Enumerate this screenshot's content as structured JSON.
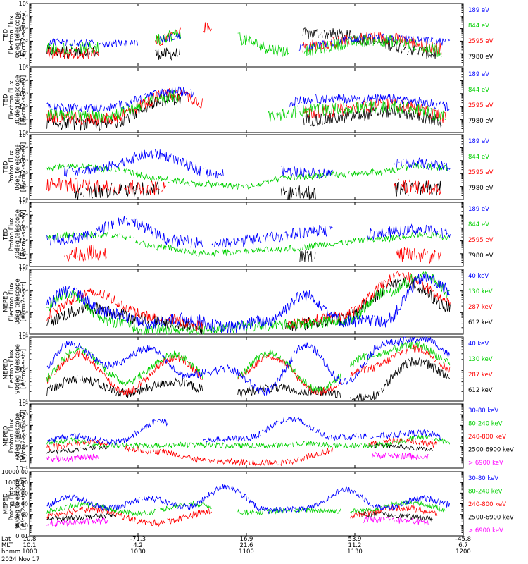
{
  "chart_data": [
    {
      "type": "line",
      "ylabel": [
        "TED",
        "Electron Flux",
        "0deg telescope",
        "[#/cm2-s-str-eV]"
      ],
      "yscale": "log",
      "ylim": [
        1,
        100000
      ],
      "ytick_labels": [
        "10⁰",
        "10¹",
        "10²",
        "10³",
        "10⁴",
        "10⁵"
      ],
      "series": [
        {
          "name": "7980 eV",
          "color": "#000000",
          "segments": [
            [
              0.04,
              0.16
            ],
            [
              0.29,
              0.35
            ],
            [
              0.63,
              0.94
            ]
          ],
          "values": [
            1.2,
            1.0,
            2.6,
            0.8
          ],
          "noise": 0.5,
          "gaps": 0.35
        },
        {
          "name": "2595 eV",
          "color": "#ff0000",
          "segments": [
            [
              0.04,
              0.16
            ],
            [
              0.29,
              0.35
            ],
            [
              0.4,
              0.42
            ],
            [
              0.63,
              0.95
            ]
          ],
          "values": [
            1.0,
            1.1,
            3.1,
            1.5,
            2.3,
            1.2
          ],
          "noise": 0.5,
          "gaps": 0.25
        },
        {
          "name": "844 eV",
          "color": "#00d000",
          "segments": [
            [
              0.04,
              0.16
            ],
            [
              0.29,
              0.35
            ],
            [
              0.48,
              0.6
            ],
            [
              0.63,
              0.95
            ]
          ],
          "values": [
            1.4,
            1.5,
            2.9,
            1.2,
            2.1,
            1.0
          ],
          "noise": 0.5,
          "gaps": 0.3
        },
        {
          "name": "189 eV",
          "color": "#0000ff",
          "segments": [
            [
              0.04,
              0.25
            ],
            [
              0.3,
              0.35
            ],
            [
              0.62,
              0.97
            ]
          ],
          "values": [
            2.0,
            1.8,
            2.5,
            1.5,
            2.3,
            1.9
          ],
          "noise": 0.3,
          "gaps": 0.55
        }
      ]
    },
    {
      "type": "line",
      "ylabel": [
        "TED",
        "Electron Flux",
        "30deg telescope",
        "[#/cm2-s-str-eV]"
      ],
      "yscale": "log",
      "ylim": [
        1,
        100000
      ],
      "ytick_labels": [
        "10⁰",
        "10¹",
        "10²",
        "10³",
        "10⁴",
        "10⁵"
      ],
      "series": [
        {
          "name": "7980 eV",
          "color": "#000000",
          "segments": [
            [
              0.04,
              0.35
            ],
            [
              0.63,
              0.95
            ]
          ],
          "values": [
            0.8,
            0.6,
            2.6,
            0.6,
            1.0,
            1.6,
            0.6
          ],
          "noise": 0.5,
          "gaps": 0.2
        },
        {
          "name": "2595 eV",
          "color": "#ff0000",
          "segments": [
            [
              0.04,
              0.4
            ],
            [
              0.63,
              0.96
            ]
          ],
          "values": [
            1.3,
            1.0,
            3.0,
            0.8,
            1.6,
            2.2,
            1.0
          ],
          "noise": 0.5,
          "gaps": 0.25
        },
        {
          "name": "844 eV",
          "color": "#00d000",
          "segments": [
            [
              0.04,
              0.35
            ],
            [
              0.55,
              0.96
            ]
          ],
          "values": [
            1.5,
            1.3,
            2.8,
            1.0,
            1.8,
            2.0,
            1.1
          ],
          "noise": 0.5,
          "gaps": 0.3
        },
        {
          "name": "189 eV",
          "color": "#0000ff",
          "segments": [
            [
              0.04,
              0.38
            ],
            [
              0.6,
              0.97
            ]
          ],
          "values": [
            2.0,
            1.9,
            3.2,
            1.8,
            2.6,
            2.6,
            1.9
          ],
          "noise": 0.35,
          "gaps": 0.3
        }
      ]
    },
    {
      "type": "line",
      "ylabel": [
        "TED",
        "Proton Flux",
        "0deg telescope",
        "[#/cm2-s-str-eV]"
      ],
      "yscale": "log",
      "ylim": [
        1,
        100000
      ],
      "ytick_labels": [
        "10⁰",
        "10¹",
        "10²",
        "10³",
        "10⁴",
        "10⁵"
      ],
      "series": [
        {
          "name": "7980 eV",
          "color": "#000000",
          "segments": [
            [
              0.1,
              0.3
            ],
            [
              0.58,
              0.66
            ],
            [
              0.84,
              0.95
            ]
          ],
          "values": [
            0.4,
            0.8,
            0.3,
            0.7,
            0.9
          ],
          "noise": 0.6,
          "gaps": 0.5
        },
        {
          "name": "2595 eV",
          "color": "#ff0000",
          "segments": [
            [
              0.04,
              0.32
            ],
            [
              0.84,
              0.95
            ]
          ],
          "values": [
            1.2,
            0.9,
            0.8,
            1.2,
            0.9
          ],
          "noise": 0.6,
          "gaps": 0.55
        },
        {
          "name": "844 eV",
          "color": "#00d000",
          "segments": [
            [
              0.04,
              0.97
            ]
          ],
          "values": [
            2.3,
            2.6,
            2.3,
            1.6,
            1.2,
            1.0,
            1.7,
            1.9,
            2.1,
            2.6,
            2.3
          ],
          "noise": 0.25,
          "gaps": 0.3
        },
        {
          "name": "189 eV",
          "color": "#0000ff",
          "segments": [
            [
              0.08,
              0.45
            ],
            [
              0.58,
              0.7
            ],
            [
              0.84,
              0.97
            ]
          ],
          "values": [
            2.0,
            2.3,
            3.5,
            2.0,
            2.2,
            2.0,
            2.9,
            2.4
          ],
          "noise": 0.4,
          "gaps": 0.45
        }
      ]
    },
    {
      "type": "line",
      "ylabel": [
        "TED",
        "Proton Flux",
        "30deg telescope",
        "[#/cm2-s-str-eV]"
      ],
      "yscale": "log",
      "ylim": [
        1,
        100000
      ],
      "ytick_labels": [
        "10⁰",
        "10¹",
        "10²",
        "10³",
        "10⁴",
        "10⁵"
      ],
      "series": [
        {
          "name": "7980 eV",
          "color": "#000000",
          "segments": [
            [
              0.62,
              0.66
            ]
          ],
          "values": [
            0.6,
            0.8,
            0.5
          ],
          "noise": 0.6,
          "gaps": 0.6
        },
        {
          "name": "2595 eV",
          "color": "#ff0000",
          "segments": [
            [
              0.08,
              0.18
            ],
            [
              0.84,
              0.95
            ]
          ],
          "values": [
            1.0,
            1.3,
            0.8
          ],
          "noise": 0.6,
          "gaps": 0.6
        },
        {
          "name": "844 eV",
          "color": "#00d000",
          "segments": [
            [
              0.04,
              0.97
            ]
          ],
          "values": [
            2.0,
            2.5,
            2.4,
            1.5,
            1.0,
            1.2,
            1.4,
            1.8,
            2.1,
            2.5,
            2.2
          ],
          "noise": 0.25,
          "gaps": 0.4
        },
        {
          "name": "189 eV",
          "color": "#0000ff",
          "segments": [
            [
              0.04,
              0.4
            ],
            [
              0.42,
              0.7
            ],
            [
              0.78,
              0.97
            ]
          ],
          "values": [
            2.0,
            2.2,
            3.6,
            2.0,
            1.8,
            2.3,
            2.8,
            2.5,
            2.9,
            2.6
          ],
          "noise": 0.45,
          "gaps": 0.45
        }
      ]
    },
    {
      "type": "line",
      "ylabel": [
        "MEPED",
        "Electron Flux",
        "0deg telescope",
        "[#/cm2-s-str]"
      ],
      "yscale": "log",
      "ylim": [
        100,
        100000
      ],
      "ytick_labels": [
        "10²",
        "10³",
        "10⁴",
        "10⁵"
      ],
      "series": [
        {
          "name": "612 keV",
          "color": "#000000",
          "segments": [
            [
              0.04,
              0.4
            ],
            [
              0.59,
              0.97
            ]
          ],
          "values": [
            2.4,
            3.2,
            2.6,
            2.2,
            2.3,
            2.7,
            4.4,
            3.0
          ],
          "noise": 0.3,
          "gaps": 0.2
        },
        {
          "name": "287 keV",
          "color": "#ff0000",
          "segments": [
            [
              0.04,
              0.4
            ],
            [
              0.59,
              0.97
            ]
          ],
          "values": [
            2.6,
            3.9,
            2.8,
            2.3,
            2.4,
            2.8,
            4.7,
            3.2
          ],
          "noise": 0.25,
          "gaps": 0.15
        },
        {
          "name": "130 keV",
          "color": "#00d000",
          "segments": [
            [
              0.04,
              0.97
            ]
          ],
          "values": [
            2.7,
            3.9,
            2.6,
            2.2,
            2.2,
            2.3,
            2.4,
            2.5,
            2.6,
            3.9,
            4.7,
            3.5
          ],
          "noise": 0.25,
          "gaps": 0.1
        },
        {
          "name": "40 keV",
          "color": "#0000ff",
          "segments": [
            [
              0.04,
              0.97
            ]
          ],
          "values": [
            2.8,
            4.0,
            3.0,
            2.5,
            2.7,
            2.3,
            2.6,
            3.8,
            2.6,
            2.6,
            4.6,
            3.7
          ],
          "noise": 0.3,
          "gaps": 0.1
        }
      ]
    },
    {
      "type": "line",
      "ylabel": [
        "MEPED",
        "Electron Flux",
        "90deg telescope",
        "[#/cm2-s-str]"
      ],
      "yscale": "log",
      "ylim": [
        100,
        1000000
      ],
      "ytick_labels": [
        "10²",
        "10⁴",
        "10⁶"
      ],
      "series": [
        {
          "name": "612 keV",
          "color": "#000000",
          "segments": [
            [
              0.04,
              0.4
            ],
            [
              0.48,
              0.72
            ],
            [
              0.74,
              0.97
            ]
          ],
          "values": [
            2.3,
            3.4,
            2.5,
            3.2,
            2.4,
            2.8,
            2.6,
            2.2,
            4.5,
            3.2
          ],
          "noise": 0.3,
          "gaps": 0.1
        },
        {
          "name": "287 keV",
          "color": "#ff0000",
          "segments": [
            [
              0.04,
              0.4
            ],
            [
              0.48,
              0.72
            ],
            [
              0.74,
              0.97
            ]
          ],
          "values": [
            2.5,
            4.9,
            2.6,
            4.7,
            2.8,
            4.8,
            2.6,
            4.0,
            5.3,
            3.6
          ],
          "noise": 0.25,
          "gaps": 0.1
        },
        {
          "name": "130 keV",
          "color": "#00d000",
          "segments": [
            [
              0.04,
              0.4
            ],
            [
              0.48,
              0.72
            ],
            [
              0.74,
              0.97
            ]
          ],
          "values": [
            2.6,
            5.2,
            3.2,
            4.9,
            2.9,
            5.0,
            2.7,
            4.8,
            5.5,
            4.0
          ],
          "noise": 0.25,
          "gaps": 0.1
        },
        {
          "name": "40 keV",
          "color": "#0000ff",
          "segments": [
            [
              0.04,
              0.97
            ]
          ],
          "values": [
            2.7,
            5.6,
            4.2,
            5.3,
            3.6,
            4.0,
            2.6,
            5.5,
            3.2,
            5.6,
            5.9,
            4.4
          ],
          "noise": 0.25,
          "gaps": 0.05
        }
      ]
    },
    {
      "type": "line",
      "ylabel": [
        "MEPED",
        "Proton Flux",
        "0deg telescope",
        "[#/cm2-s-str-keV]"
      ],
      "yscale": "log",
      "ylim": [
        0.01,
        10000
      ],
      "ytick_labels": [
        "10⁻²",
        "10⁻¹",
        "10⁰",
        "10¹",
        "10²",
        "10³",
        "10⁴"
      ],
      "series": [
        {
          "name": "> 6900 keV",
          "color": "#ff00ff",
          "segments": [
            [
              0.04,
              0.16
            ],
            [
              0.79,
              0.92
            ]
          ],
          "values": [
            -1.2,
            -0.9,
            -1.3,
            -1.1,
            -0.8,
            -1.1
          ],
          "noise": 0.3,
          "gaps": 0.2
        },
        {
          "name": "2500-6900 keV",
          "color": "#000000",
          "segments": [
            [
              0.04,
              0.18
            ],
            [
              0.78,
              0.93
            ]
          ],
          "values": [
            -0.6,
            0.0,
            -0.7,
            -0.4,
            0.1,
            -0.5
          ],
          "noise": 0.2,
          "gaps": 0.15
        },
        {
          "name": "240-800 keV",
          "color": "#ff0000",
          "segments": [
            [
              0.04,
              0.18
            ],
            [
              0.22,
              0.7
            ],
            [
              0.78,
              0.94
            ]
          ],
          "values": [
            -0.2,
            0.4,
            -0.4,
            -1.4,
            -1.5,
            -0.3,
            0.6,
            -0.1
          ],
          "noise": 0.3,
          "gaps": 0.5
        },
        {
          "name": "80-240 keV",
          "color": "#00d000",
          "segments": [
            [
              0.04,
              0.97
            ]
          ],
          "values": [
            0.1,
            0.6,
            0.1,
            0.1,
            0.2,
            0.1,
            0.1,
            0.3,
            0.1,
            0.2,
            0.9,
            0.1
          ],
          "noise": 0.25,
          "gaps": 0.25
        },
        {
          "name": "30-80 keV",
          "color": "#0000ff",
          "segments": [
            [
              0.04,
              0.32
            ],
            [
              0.4,
              0.95
            ]
          ],
          "values": [
            0.2,
            1.0,
            0.4,
            2.4,
            0.6,
            0.8,
            2.6,
            0.9,
            1.0,
            1.3,
            0.5
          ],
          "noise": 0.3,
          "gaps": 0.2
        }
      ]
    },
    {
      "type": "line",
      "ylabel": [
        "MEPED",
        "Proton Flux",
        "90deg telescope",
        "[#/cm2-s-str-keV]"
      ],
      "yscale": "log",
      "ylim": [
        0.01,
        10000
      ],
      "ytick_labels": [
        "0.01",
        "0.10",
        "1.00",
        "10.00",
        "100.00",
        "1000.00",
        "10000.00"
      ],
      "series": [
        {
          "name": "> 6900 keV",
          "color": "#ff00ff",
          "segments": [
            [
              0.04,
              0.18
            ],
            [
              0.77,
              0.92
            ]
          ],
          "values": [
            -0.9,
            -0.6,
            -1.0,
            -0.8,
            -0.5,
            -0.9
          ],
          "noise": 0.3,
          "gaps": 0.15
        },
        {
          "name": "2500-6900 keV",
          "color": "#000000",
          "segments": [
            [
              0.04,
              0.2
            ],
            [
              0.76,
              0.93
            ]
          ],
          "values": [
            -0.5,
            -0.1,
            -0.7,
            -0.4,
            0.0,
            -0.6
          ],
          "noise": 0.25,
          "gaps": 0.1
        },
        {
          "name": "240-800 keV",
          "color": "#ff0000",
          "segments": [
            [
              0.04,
              0.42
            ],
            [
              0.74,
              0.94
            ]
          ],
          "values": [
            -0.3,
            0.5,
            -0.8,
            0.3,
            -1.0,
            -0.2,
            0.6,
            -0.3
          ],
          "noise": 0.3,
          "gaps": 0.2
        },
        {
          "name": "80-240 keV",
          "color": "#00d000",
          "segments": [
            [
              0.04,
              0.42
            ],
            [
              0.48,
              0.72
            ],
            [
              0.74,
              0.96
            ]
          ],
          "values": [
            0.0,
            0.9,
            0.1,
            1.0,
            0.2,
            0.4,
            0.3,
            1.1,
            0.2
          ],
          "noise": 0.25,
          "gaps": 0.15
        },
        {
          "name": "30-80 keV",
          "color": "#0000ff",
          "segments": [
            [
              0.04,
              0.97
            ]
          ],
          "values": [
            0.2,
            1.6,
            0.6,
            1.5,
            0.7,
            2.6,
            0.4,
            0.5,
            2.3,
            0.6,
            1.5,
            0.6
          ],
          "noise": 0.3,
          "gaps": 0.1
        }
      ]
    }
  ],
  "x_axis": {
    "rows": [
      {
        "name": "Lat",
        "values": [
          "10.8",
          "-71.3",
          "16.9",
          "53.9",
          "-45.8"
        ]
      },
      {
        "name": "MLT",
        "values": [
          "10.1",
          "4.2",
          "21.6",
          "11.2",
          "6.7"
        ]
      },
      {
        "name": "hhmm",
        "values": [
          "1000",
          "1030",
          "1100",
          "1130",
          "1200"
        ]
      }
    ],
    "date": "2024 Nov 17"
  }
}
